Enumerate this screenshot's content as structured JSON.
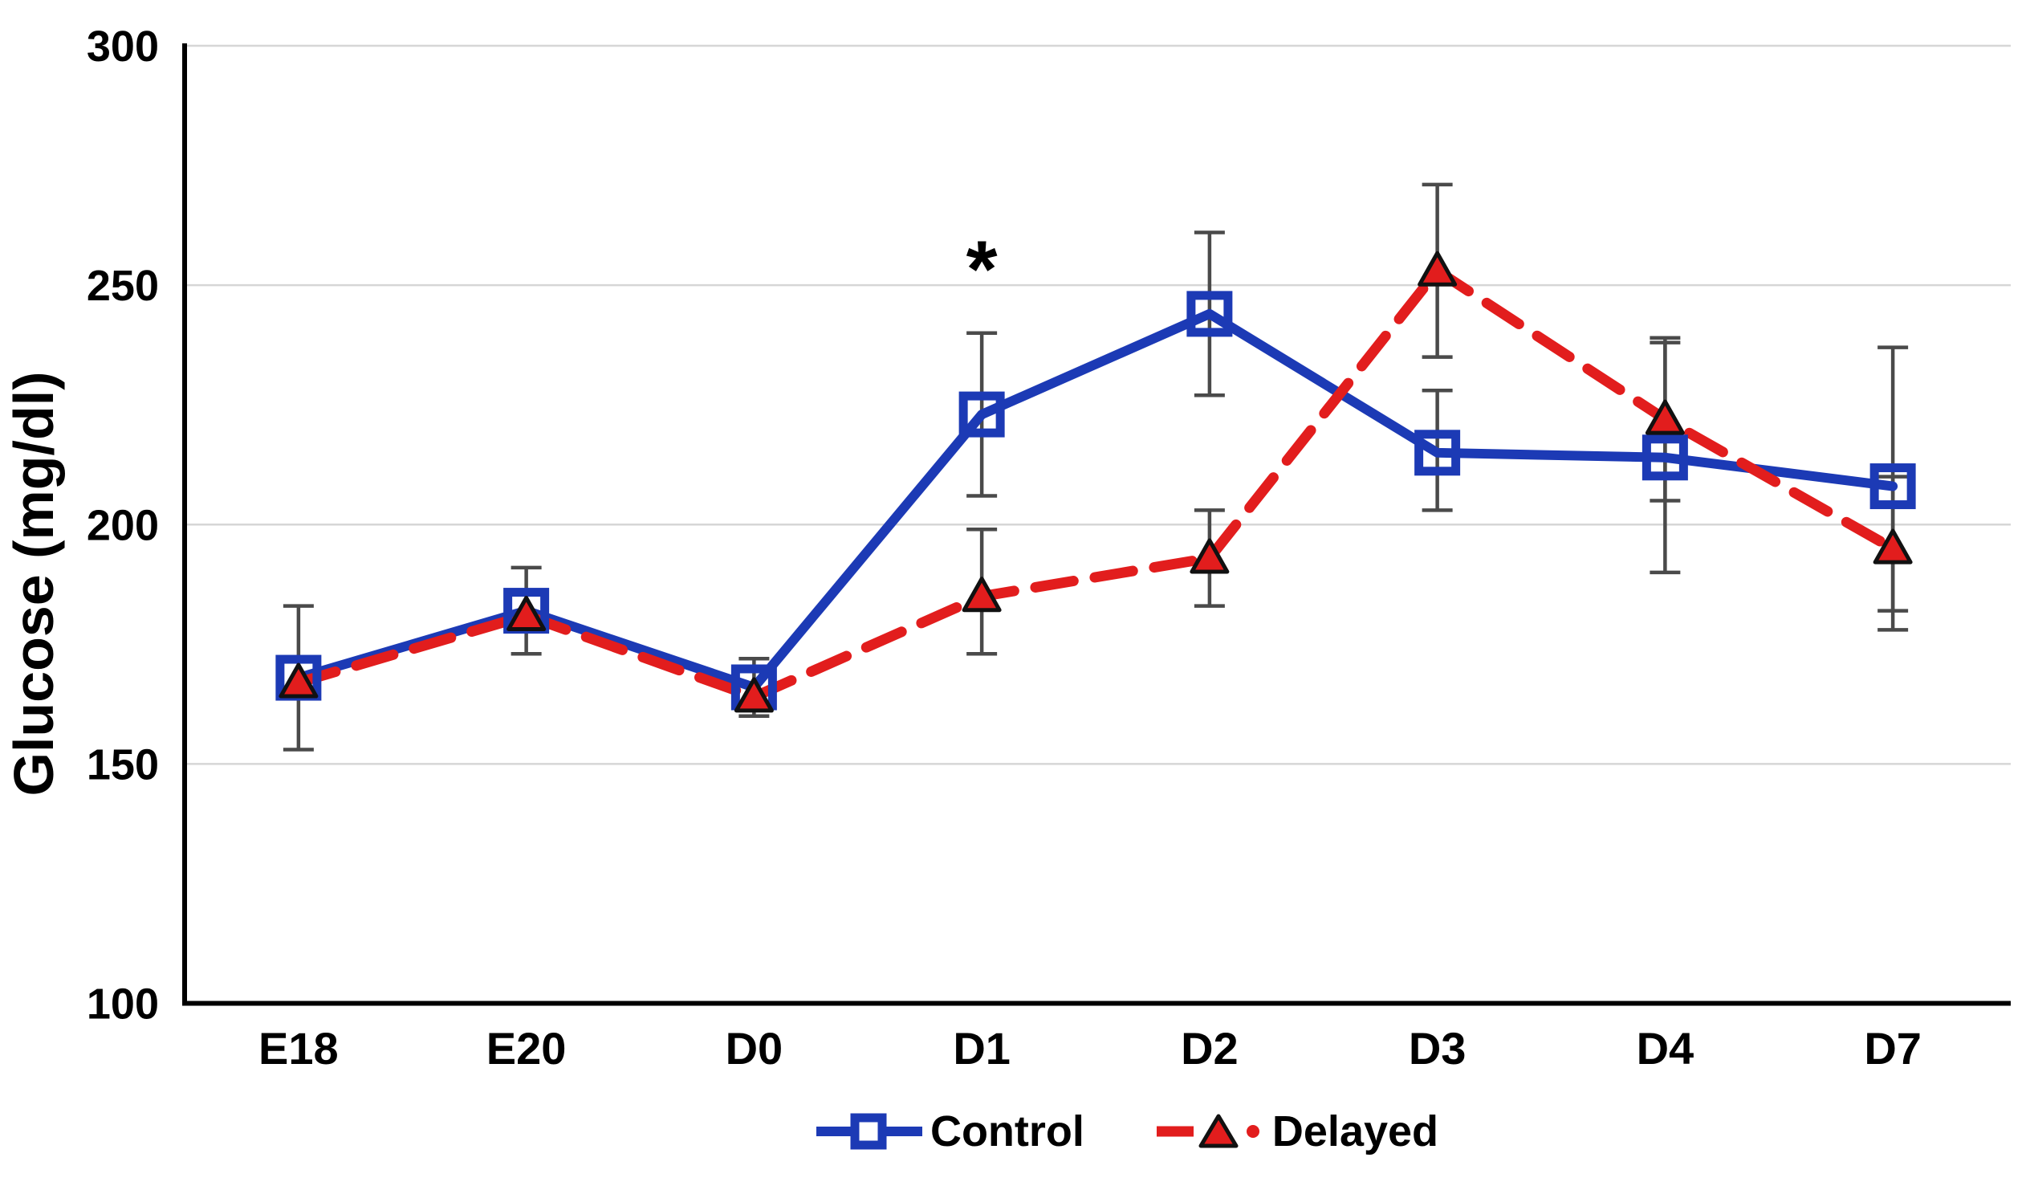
{
  "y_axis_title": "Glucose (mg/dl)",
  "legend": {
    "control_label": "Control",
    "delayed_label": "Delayed"
  },
  "colors": {
    "control": "#1c3ab5",
    "delayed": "#e21d1d",
    "error_bar": "#4a4a4a",
    "gridline": "#d6d6d6",
    "axis": "#000000",
    "text": "#000000"
  },
  "chart_data": {
    "type": "line",
    "title": "",
    "xlabel": "",
    "ylabel": "Glucose (mg/dl)",
    "categories": [
      "E18",
      "E20",
      "D0",
      "D1",
      "D2",
      "D3",
      "D4",
      "D7"
    ],
    "ylim": [
      100,
      300
    ],
    "yticks": [
      100,
      150,
      200,
      250,
      300
    ],
    "grid": true,
    "legend_position": "bottom",
    "series": [
      {
        "name": "Control",
        "color": "#1c3ab5",
        "style": "solid",
        "marker": "open-square",
        "values": [
          168,
          182,
          166,
          223,
          244,
          215,
          214,
          208
        ],
        "err_lo": [
          153,
          173,
          160,
          206,
          227,
          203,
          190,
          178
        ],
        "err_hi": [
          183,
          191,
          172,
          240,
          261,
          228,
          238,
          237
        ]
      },
      {
        "name": "Delayed",
        "color": "#e21d1d",
        "style": "dashed",
        "marker": "filled-triangle",
        "values": [
          167,
          181,
          164,
          185,
          193,
          253,
          222,
          195
        ],
        "err_lo": [
          null,
          null,
          null,
          173,
          183,
          235,
          205,
          182
        ],
        "err_hi": [
          null,
          null,
          null,
          199,
          203,
          271,
          239,
          210
        ]
      }
    ],
    "annotations": [
      {
        "text": "*",
        "category": "D1",
        "value": 256
      }
    ]
  }
}
